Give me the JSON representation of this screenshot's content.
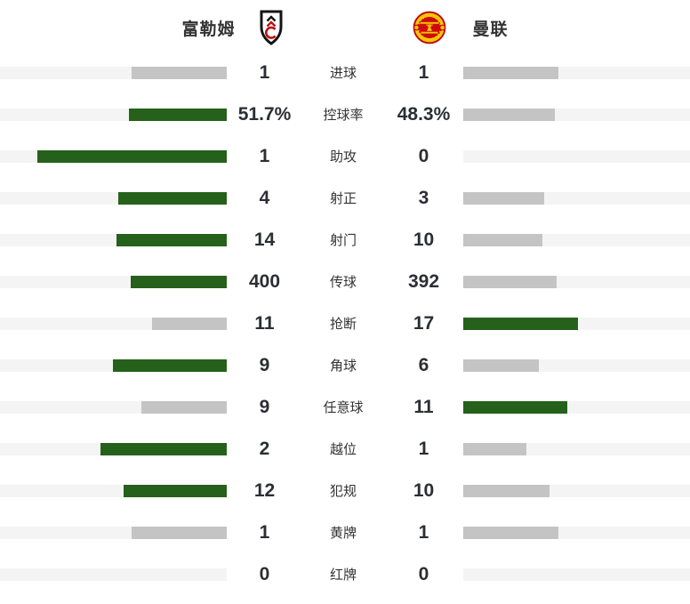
{
  "header": {
    "home_name": "富勒姆",
    "away_name": "曼联"
  },
  "colors": {
    "win_bar": "#25611a",
    "lose_bar": "#c4c4c4",
    "track": "#f4f4f4",
    "value_text": "#2b2e33",
    "label_text": "#333333"
  },
  "chart_data": {
    "type": "bar",
    "orientation": "horizontal-paired",
    "legend_position": "none",
    "grid": false,
    "teams": [
      "富勒姆",
      "曼联"
    ],
    "bar_rule": "bar length = value / (home+away) of row; leading side colored green, other gray; equal values both gray",
    "rows": [
      {
        "label": "进球",
        "home": 1,
        "away": 1,
        "home_display": "1",
        "away_display": "1"
      },
      {
        "label": "控球率",
        "home": 51.7,
        "away": 48.3,
        "home_display": "51.7%",
        "away_display": "48.3%"
      },
      {
        "label": "助攻",
        "home": 1,
        "away": 0,
        "home_display": "1",
        "away_display": "0"
      },
      {
        "label": "射正",
        "home": 4,
        "away": 3,
        "home_display": "4",
        "away_display": "3"
      },
      {
        "label": "射门",
        "home": 14,
        "away": 10,
        "home_display": "14",
        "away_display": "10"
      },
      {
        "label": "传球",
        "home": 400,
        "away": 392,
        "home_display": "400",
        "away_display": "392"
      },
      {
        "label": "抢断",
        "home": 11,
        "away": 17,
        "home_display": "11",
        "away_display": "17"
      },
      {
        "label": "角球",
        "home": 9,
        "away": 6,
        "home_display": "9",
        "away_display": "6"
      },
      {
        "label": "任意球",
        "home": 9,
        "away": 11,
        "home_display": "9",
        "away_display": "11"
      },
      {
        "label": "越位",
        "home": 2,
        "away": 1,
        "home_display": "2",
        "away_display": "1"
      },
      {
        "label": "犯规",
        "home": 12,
        "away": 10,
        "home_display": "12",
        "away_display": "10"
      },
      {
        "label": "黄牌",
        "home": 1,
        "away": 1,
        "home_display": "1",
        "away_display": "1"
      },
      {
        "label": "红牌",
        "home": 0,
        "away": 0,
        "home_display": "0",
        "away_display": "0"
      }
    ]
  }
}
